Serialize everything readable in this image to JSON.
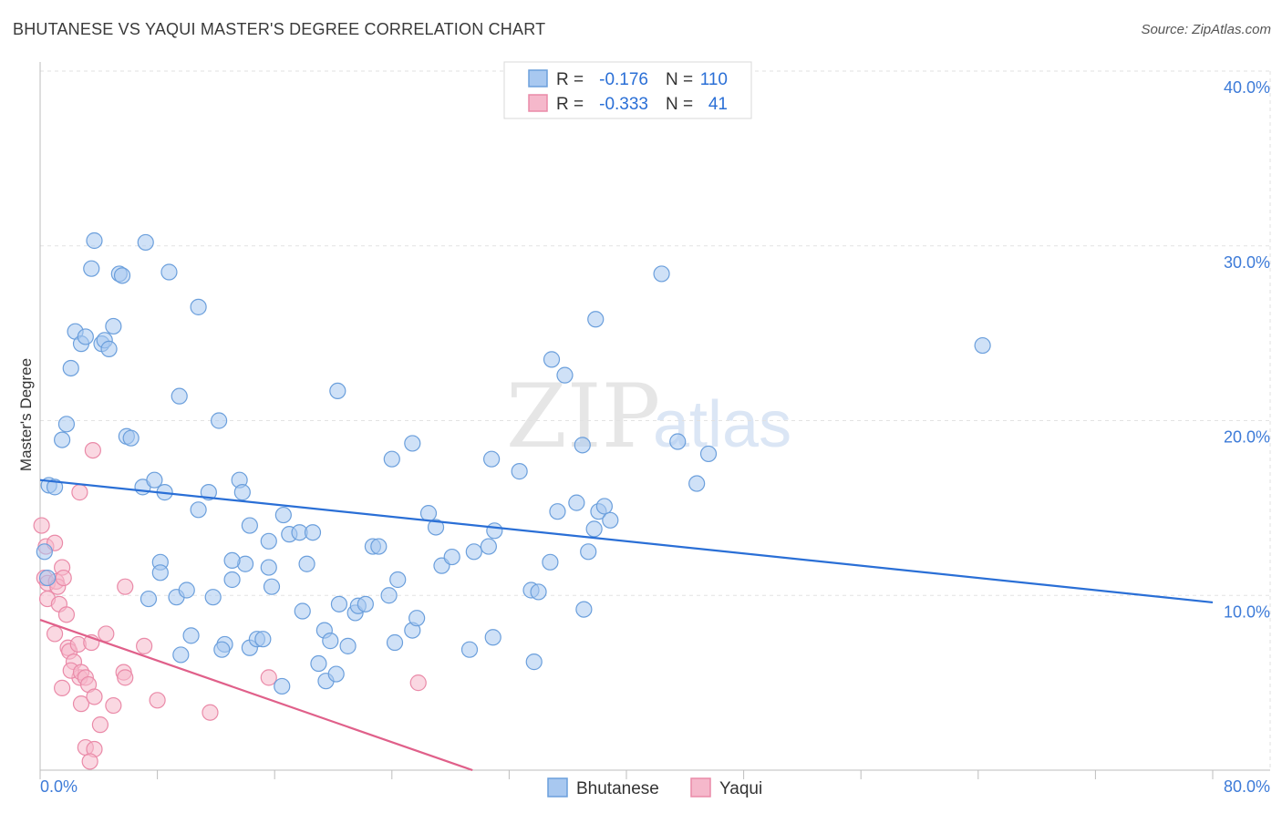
{
  "header": {
    "title": "BHUTANESE VS YAQUI MASTER'S DEGREE CORRELATION CHART",
    "source": "Source: ZipAtlas.com"
  },
  "watermark": {
    "zip": "ZIP",
    "atlas": "atlas"
  },
  "legend": {
    "r_label": "R =",
    "n_label": "N =",
    "rows": [
      {
        "r": "-0.176",
        "n": "110",
        "color": "#a8c8f0"
      },
      {
        "r": "-0.333",
        "n": "41",
        "color": "#f5b8cb"
      }
    ]
  },
  "colors": {
    "bhutanese_fill": "#a8c8f0",
    "bhutanese_stroke": "#6b9fdc",
    "bhutanese_line": "#2a6fd6",
    "yaqui_fill": "#f5b8cb",
    "yaqui_stroke": "#ea8aa8",
    "yaqui_line": "#e0608a"
  },
  "chart_data": {
    "type": "scatter",
    "title": "BHUTANESE VS YAQUI MASTER'S DEGREE CORRELATION CHART",
    "xlabel": "",
    "ylabel": "Master's Degree",
    "xlim": [
      0,
      80
    ],
    "ylim": [
      0,
      40
    ],
    "x_tick_labels": [
      "0.0%",
      "80.0%"
    ],
    "y_ticks": [
      10,
      20,
      30,
      40
    ],
    "y_tick_labels": [
      "10.0%",
      "20.0%",
      "30.0%",
      "40.0%"
    ],
    "grid": true,
    "legend_position": "top-center",
    "series": [
      {
        "name": "Bhutanese",
        "color": "#a8c8f0",
        "trend": {
          "x": [
            0,
            80
          ],
          "y": [
            16.6,
            9.6
          ]
        },
        "points": [
          [
            0.6,
            16.3
          ],
          [
            1.0,
            16.2
          ],
          [
            0.3,
            12.5
          ],
          [
            0.5,
            11.0
          ],
          [
            3.7,
            30.3
          ],
          [
            3.5,
            28.7
          ],
          [
            5.4,
            28.4
          ],
          [
            5.6,
            28.3
          ],
          [
            7.2,
            30.2
          ],
          [
            8.8,
            28.5
          ],
          [
            10.8,
            26.5
          ],
          [
            2.4,
            25.1
          ],
          [
            2.8,
            24.4
          ],
          [
            3.1,
            24.8
          ],
          [
            4.2,
            24.4
          ],
          [
            4.4,
            24.6
          ],
          [
            4.7,
            24.1
          ],
          [
            5.0,
            25.4
          ],
          [
            2.1,
            23.0
          ],
          [
            9.5,
            21.4
          ],
          [
            12.2,
            20.0
          ],
          [
            1.8,
            19.8
          ],
          [
            1.5,
            18.9
          ],
          [
            5.9,
            19.1
          ],
          [
            6.2,
            19.0
          ],
          [
            7.0,
            16.2
          ],
          [
            7.8,
            16.6
          ],
          [
            8.5,
            15.9
          ],
          [
            10.8,
            14.9
          ],
          [
            11.5,
            15.9
          ],
          [
            13.6,
            16.6
          ],
          [
            13.8,
            15.9
          ],
          [
            8.2,
            11.9
          ],
          [
            8.2,
            11.3
          ],
          [
            7.4,
            9.8
          ],
          [
            9.3,
            9.9
          ],
          [
            10.0,
            10.3
          ],
          [
            11.8,
            9.9
          ],
          [
            14.3,
            14.0
          ],
          [
            14.0,
            11.8
          ],
          [
            13.1,
            12.0
          ],
          [
            13.1,
            10.9
          ],
          [
            15.6,
            13.1
          ],
          [
            15.6,
            11.6
          ],
          [
            16.6,
            14.6
          ],
          [
            17.0,
            13.5
          ],
          [
            17.7,
            13.6
          ],
          [
            18.6,
            13.6
          ],
          [
            18.2,
            11.8
          ],
          [
            15.8,
            10.5
          ],
          [
            12.6,
            7.2
          ],
          [
            12.4,
            6.9
          ],
          [
            10.3,
            7.7
          ],
          [
            9.6,
            6.6
          ],
          [
            14.3,
            7.0
          ],
          [
            14.8,
            7.5
          ],
          [
            15.2,
            7.5
          ],
          [
            16.5,
            4.8
          ],
          [
            17.9,
            9.1
          ],
          [
            19.4,
            8.0
          ],
          [
            19.8,
            7.4
          ],
          [
            19.0,
            6.1
          ],
          [
            19.5,
            5.1
          ],
          [
            20.4,
            9.5
          ],
          [
            20.2,
            5.5
          ],
          [
            21.0,
            7.1
          ],
          [
            21.5,
            9.0
          ],
          [
            21.7,
            9.4
          ],
          [
            22.2,
            9.5
          ],
          [
            23.8,
            10.0
          ],
          [
            22.7,
            12.8
          ],
          [
            23.1,
            12.8
          ],
          [
            24.4,
            10.9
          ],
          [
            24.2,
            7.3
          ],
          [
            25.4,
            8.0
          ],
          [
            25.7,
            8.7
          ],
          [
            20.3,
            21.7
          ],
          [
            24.0,
            17.8
          ],
          [
            25.4,
            18.7
          ],
          [
            26.5,
            14.7
          ],
          [
            27.0,
            13.9
          ],
          [
            27.4,
            11.7
          ],
          [
            28.1,
            12.2
          ],
          [
            29.6,
            12.5
          ],
          [
            30.6,
            12.8
          ],
          [
            29.3,
            6.9
          ],
          [
            30.9,
            7.6
          ],
          [
            31.0,
            13.7
          ],
          [
            30.8,
            17.8
          ],
          [
            32.7,
            17.1
          ],
          [
            33.5,
            10.3
          ],
          [
            34.0,
            10.2
          ],
          [
            34.8,
            11.9
          ],
          [
            33.7,
            6.2
          ],
          [
            34.9,
            23.5
          ],
          [
            35.8,
            22.6
          ],
          [
            35.3,
            14.8
          ],
          [
            36.6,
            15.3
          ],
          [
            37.0,
            18.6
          ],
          [
            37.4,
            12.5
          ],
          [
            37.8,
            13.8
          ],
          [
            38.1,
            14.8
          ],
          [
            38.5,
            15.1
          ],
          [
            37.9,
            25.8
          ],
          [
            38.9,
            14.3
          ],
          [
            37.1,
            9.2
          ],
          [
            42.4,
            28.4
          ],
          [
            43.5,
            18.8
          ],
          [
            44.8,
            16.4
          ],
          [
            45.6,
            18.1
          ],
          [
            64.3,
            24.3
          ]
        ]
      },
      {
        "name": "Yaqui",
        "color": "#f5b8cb",
        "trend": {
          "x": [
            0,
            29.5
          ],
          "y": [
            8.6,
            0.0
          ]
        },
        "points": [
          [
            0.1,
            14.0
          ],
          [
            0.4,
            12.8
          ],
          [
            0.3,
            11.0
          ],
          [
            0.5,
            10.7
          ],
          [
            0.5,
            9.8
          ],
          [
            1.0,
            13.0
          ],
          [
            1.1,
            10.8
          ],
          [
            1.2,
            10.5
          ],
          [
            1.3,
            9.5
          ],
          [
            1.5,
            11.6
          ],
          [
            1.6,
            11.0
          ],
          [
            1.8,
            8.9
          ],
          [
            1.0,
            7.8
          ],
          [
            1.9,
            7.0
          ],
          [
            2.0,
            6.8
          ],
          [
            2.3,
            6.2
          ],
          [
            2.6,
            7.2
          ],
          [
            2.7,
            5.3
          ],
          [
            2.1,
            5.7
          ],
          [
            1.5,
            4.7
          ],
          [
            2.8,
            5.6
          ],
          [
            3.1,
            5.3
          ],
          [
            3.3,
            4.9
          ],
          [
            3.5,
            7.3
          ],
          [
            4.5,
            7.8
          ],
          [
            5.0,
            3.7
          ],
          [
            2.8,
            3.8
          ],
          [
            3.7,
            4.2
          ],
          [
            4.1,
            2.6
          ],
          [
            3.1,
            1.3
          ],
          [
            3.7,
            1.2
          ],
          [
            3.4,
            0.5
          ],
          [
            2.7,
            15.9
          ],
          [
            3.6,
            18.3
          ],
          [
            5.8,
            10.5
          ],
          [
            5.7,
            5.6
          ],
          [
            5.8,
            5.3
          ],
          [
            7.1,
            7.1
          ],
          [
            8.0,
            4.0
          ],
          [
            11.6,
            3.3
          ],
          [
            15.6,
            5.3
          ],
          [
            25.8,
            5.0
          ]
        ]
      }
    ]
  },
  "bottom_legend": {
    "items": [
      {
        "label": "Bhutanese",
        "color": "#a8c8f0"
      },
      {
        "label": "Yaqui",
        "color": "#f5b8cb"
      }
    ]
  }
}
